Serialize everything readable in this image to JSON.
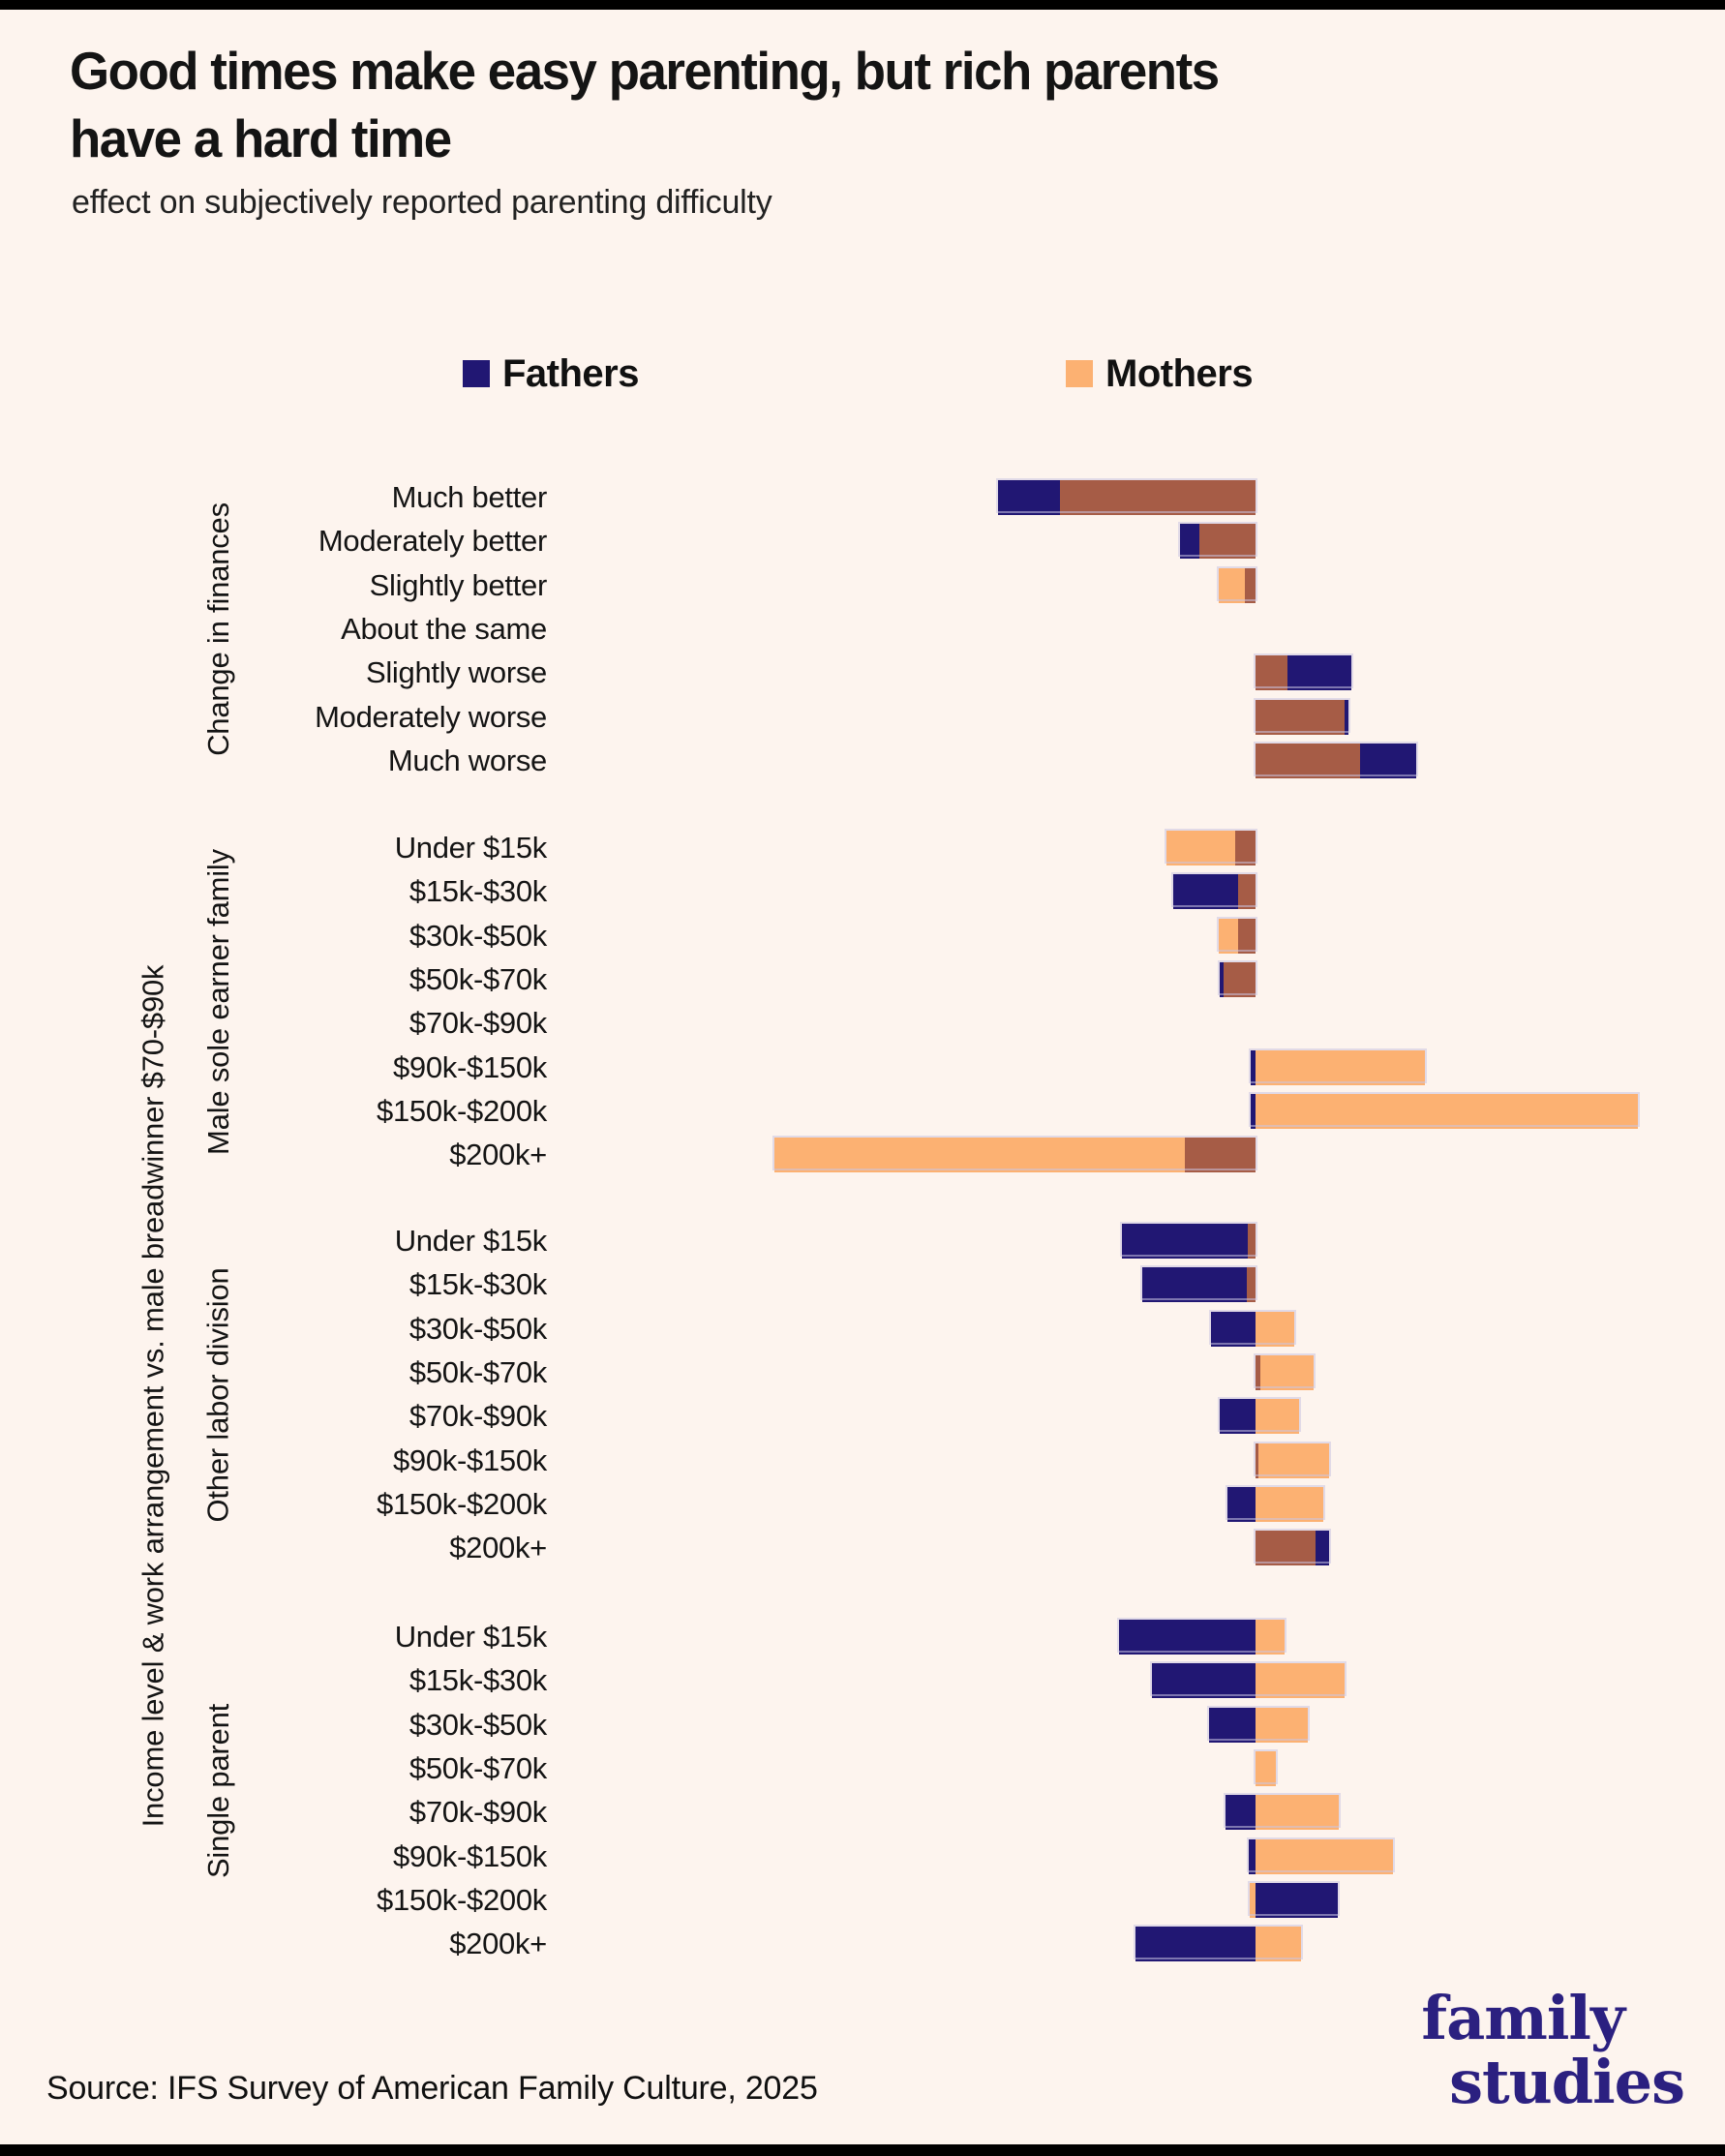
{
  "frame": {
    "background": "#fdf4ee",
    "edge_color": "#000000"
  },
  "header": {
    "title_line1": "Good times make easy parenting, but rich parents",
    "title_line2": "have a hard time",
    "subtitle": "effect on subjectively reported parenting difficulty"
  },
  "legend": {
    "fathers_label": "Fathers",
    "mothers_label": "Mothers"
  },
  "colors": {
    "fathers": "#211773",
    "mothers": "#fcb172",
    "overlap": "#a65c46",
    "logo": "#2b2080"
  },
  "axis": {
    "outer_group_label": "Income level & work arrangement vs. male breadwinner $70-$90k"
  },
  "footer": {
    "source": "Source: IFS Survey of American Family Culture, 2025",
    "logo_line1": "family",
    "logo_line2": "studies"
  },
  "chart_data": {
    "type": "bar",
    "variant": "horizontal diverging paired bars (Fathers vs Mothers) with overlap rendered as blended brown",
    "title": "Good times make easy parenting, but rich parents have a hard time",
    "subtitle": "effect on subjectively reported parenting difficulty",
    "series": [
      "Fathers",
      "Mothers"
    ],
    "units": "effect on subjectively reported parenting difficulty (arbitrary units; negative = easier, positive = harder)",
    "zero_baseline": true,
    "axis_ticks_shown": false,
    "legend_position": "top",
    "groups": [
      {
        "name": "Change in finances",
        "rows": [
          {
            "label": "Much better",
            "fathers": -266,
            "mothers": -202
          },
          {
            "label": "Moderately better",
            "fathers": -78,
            "mothers": -58
          },
          {
            "label": "Slightly better",
            "fathers": -11,
            "mothers": -38
          },
          {
            "label": "About the same",
            "fathers": 0,
            "mothers": 0
          },
          {
            "label": "Slightly worse",
            "fathers": 99,
            "mothers": 33
          },
          {
            "label": "Moderately worse",
            "fathers": 96,
            "mothers": 92
          },
          {
            "label": "Much worse",
            "fathers": 166,
            "mothers": 108
          }
        ]
      },
      {
        "name": "Male sole earner family",
        "rows": [
          {
            "label": "Under $15k",
            "fathers": -21,
            "mothers": -92
          },
          {
            "label": "$15k-$30k",
            "fathers": -85,
            "mothers": -18
          },
          {
            "label": "$30k-$50k",
            "fathers": -18,
            "mothers": -38
          },
          {
            "label": "$50k-$70k",
            "fathers": -37,
            "mothers": -33
          },
          {
            "label": "$70k-$90k",
            "fathers": 0,
            "mothers": 0
          },
          {
            "label": "$90k-$150k",
            "fathers": -5,
            "mothers": 175
          },
          {
            "label": "$150k-$200k",
            "fathers": -5,
            "mothers": 395
          },
          {
            "label": "$200k+",
            "fathers": -73,
            "mothers": -497
          }
        ]
      },
      {
        "name": "Other labor division",
        "rows": [
          {
            "label": "Under $15k",
            "fathers": -138,
            "mothers": -8
          },
          {
            "label": "$15k-$30k",
            "fathers": -117,
            "mothers": -9
          },
          {
            "label": "$30k-$50k",
            "fathers": -46,
            "mothers": 40
          },
          {
            "label": "$50k-$70k",
            "fathers": 5,
            "mothers": 60
          },
          {
            "label": "$70k-$90k",
            "fathers": -37,
            "mothers": 45
          },
          {
            "label": "$90k-$150k",
            "fathers": 3,
            "mothers": 76
          },
          {
            "label": "$150k-$200k",
            "fathers": -29,
            "mothers": 70
          },
          {
            "label": "$200k+",
            "fathers": 76,
            "mothers": 62
          }
        ]
      },
      {
        "name": "Single parent",
        "rows": [
          {
            "label": "Under $15k",
            "fathers": -141,
            "mothers": 30
          },
          {
            "label": "$15k-$30k",
            "fathers": -107,
            "mothers": 92
          },
          {
            "label": "$30k-$50k",
            "fathers": -48,
            "mothers": 54
          },
          {
            "label": "$50k-$70k",
            "fathers": 0,
            "mothers": 21
          },
          {
            "label": "$70k-$90k",
            "fathers": -31,
            "mothers": 86
          },
          {
            "label": "$90k-$150k",
            "fathers": -7,
            "mothers": 142
          },
          {
            "label": "$150k-$200k",
            "fathers": 85,
            "mothers": -6
          },
          {
            "label": "$200k+",
            "fathers": -124,
            "mothers": 47
          }
        ]
      }
    ]
  }
}
